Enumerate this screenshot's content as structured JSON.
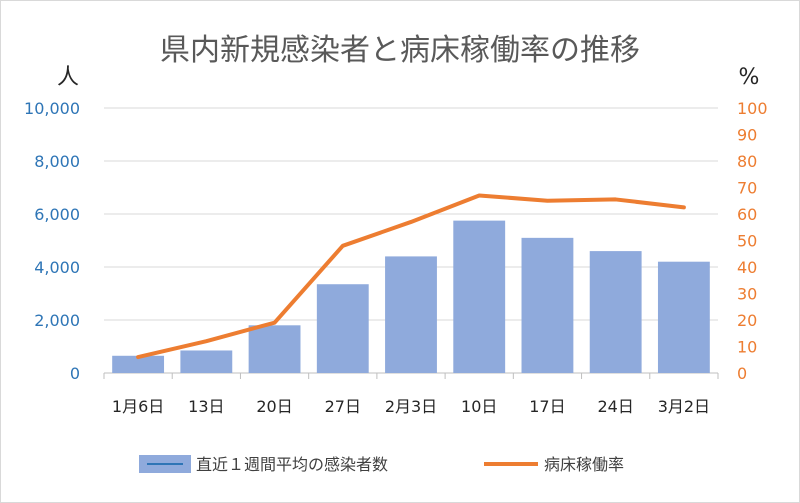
{
  "chart_data": {
    "type": "bar+line",
    "title": "県内新規感染者と病床稼働率の推移",
    "left_unit": "人",
    "right_unit": "%",
    "categories": [
      "1月6日",
      "13日",
      "20日",
      "27日",
      "2月3日",
      "10日",
      "17日",
      "24日",
      "3月2日"
    ],
    "series": [
      {
        "name": "直近１週間平均の感染者数",
        "type": "bar",
        "axis": "left",
        "color": "#8faadc",
        "values": [
          650,
          850,
          1800,
          3350,
          4400,
          5750,
          5100,
          4600,
          4200
        ]
      },
      {
        "name": "病床稼働率",
        "type": "line",
        "axis": "right",
        "color": "#ed7d31",
        "values": [
          6,
          12,
          19,
          48,
          57,
          67,
          65,
          65.5,
          62.5
        ]
      }
    ],
    "ylim_left": [
      0,
      10000
    ],
    "ylim_right": [
      0,
      100
    ],
    "left_ticks": [
      "0",
      "2,000",
      "4,000",
      "6,000",
      "8,000",
      "10,000"
    ],
    "right_ticks": [
      "0",
      "10",
      "20",
      "30",
      "40",
      "50",
      "60",
      "70",
      "80",
      "90",
      "100"
    ],
    "grid": true,
    "legend_position": "bottom"
  }
}
